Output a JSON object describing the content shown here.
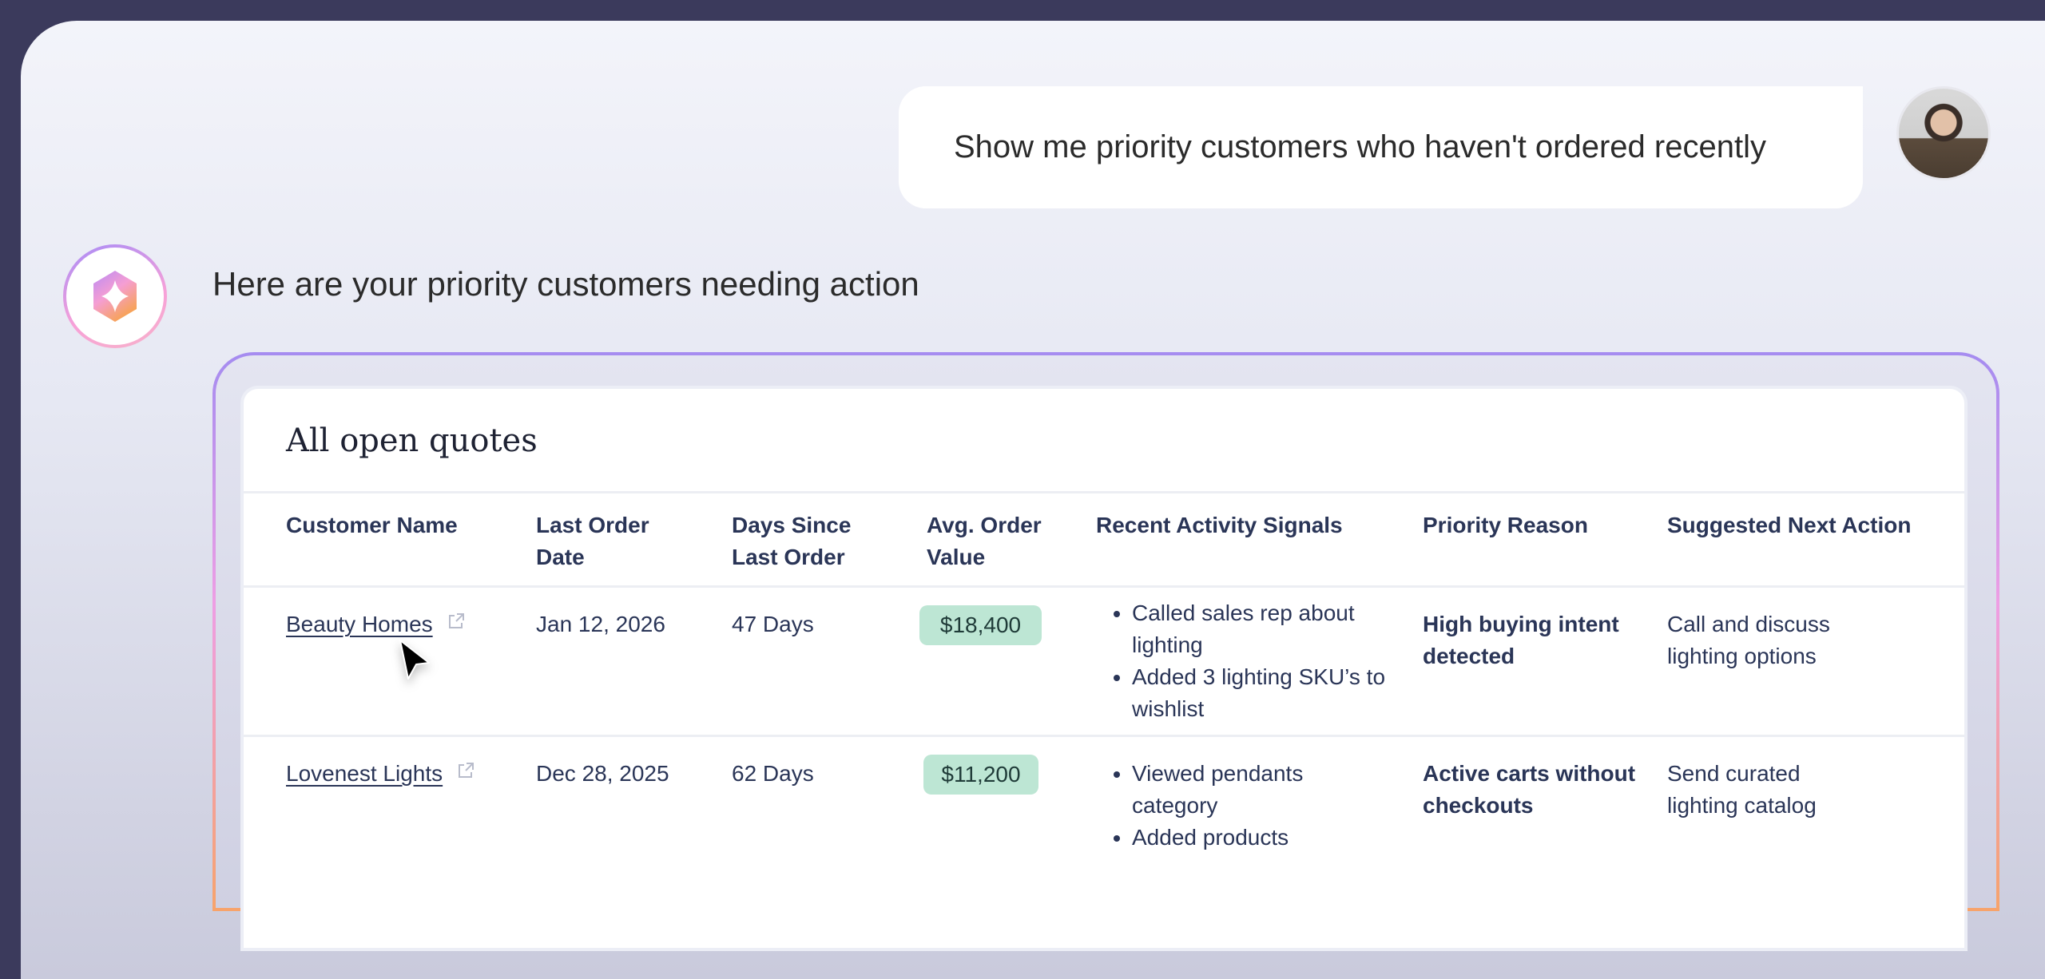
{
  "chat": {
    "user_message": "Show me priority customers who haven't ordered recently",
    "assistant_message": "Here are your priority customers needing action"
  },
  "card": {
    "title": "All open quotes",
    "headers": [
      "Customer Name",
      "Last Order Date",
      "Days Since Last Order",
      "Avg. Order Value",
      "Recent Activity Signals",
      "Priority Reason",
      "Suggested Next Action"
    ],
    "rows": [
      {
        "customer": "Beauty Homes",
        "last_order_date": "Jan 12, 2026",
        "days_since": "47 Days",
        "avg_order_value": "$18,400",
        "signals": [
          "Called sales rep about lighting",
          "Added 3 lighting SKU’s to wishlist"
        ],
        "priority_reason": "High buying intent detected",
        "next_action": "Call and discuss lighting options"
      },
      {
        "customer": "Lovenest Lights",
        "last_order_date": "Dec 28, 2025",
        "days_since": "62 Days",
        "avg_order_value": "$11,200",
        "signals": [
          "Viewed pendants category",
          "Added products"
        ],
        "priority_reason": "Active carts without checkouts",
        "next_action": "Send curated lighting catalog"
      }
    ]
  },
  "colors": {
    "frame_bg": "#3b3a5c",
    "text": "#2a3557",
    "pill": "#bde6d4"
  },
  "icons": [
    "assistant-logo-icon",
    "external-link-icon",
    "mouse-cursor-icon"
  ]
}
